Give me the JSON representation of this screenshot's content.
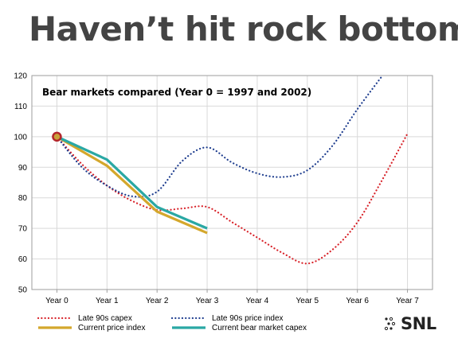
{
  "headline": "Haven’t hit rock bottom",
  "logo_text": "SNL",
  "colors": {
    "late90s_capex": "#d8232a",
    "late90s_price": "#1f3e8f",
    "current_price": "#d4a72c",
    "current_capex": "#2aa8a4",
    "marker_fill": "#c9a23a",
    "marker_stroke": "#b3262b",
    "grid": "#d9d9d9"
  },
  "chart_data": {
    "type": "line",
    "title": "Bear markets compared (Year 0 = 1997 and 2002)",
    "xlabel": "",
    "ylabel": "",
    "categories": [
      "Year 0",
      "Year 1",
      "Year 2",
      "Year 3",
      "Year 4",
      "Year 5",
      "Year 6",
      "Year 7"
    ],
    "ylim": [
      50,
      120
    ],
    "yticks": [
      50,
      60,
      70,
      80,
      90,
      100,
      110,
      120
    ],
    "grid": true,
    "legend_position": "bottom",
    "series": [
      {
        "name": "Late 90s capex",
        "style": "dotted",
        "color_key": "late90s_capex",
        "points": [
          [
            0,
            100
          ],
          [
            0.5,
            91
          ],
          [
            1,
            84
          ],
          [
            1.5,
            79
          ],
          [
            2,
            76
          ],
          [
            2.5,
            76.5
          ],
          [
            3,
            77
          ],
          [
            3.5,
            72
          ],
          [
            4,
            67
          ],
          [
            4.5,
            62
          ],
          [
            5,
            58.5
          ],
          [
            5.5,
            63
          ],
          [
            6,
            72
          ],
          [
            6.5,
            86
          ],
          [
            7,
            101
          ]
        ]
      },
      {
        "name": "Late 90s price index",
        "style": "dotted",
        "color_key": "late90s_price",
        "points": [
          [
            0,
            100
          ],
          [
            0.5,
            90
          ],
          [
            1,
            84
          ],
          [
            1.5,
            80.5
          ],
          [
            2,
            82
          ],
          [
            2.5,
            92
          ],
          [
            3,
            96.5
          ],
          [
            3.5,
            91.5
          ],
          [
            4,
            88
          ],
          [
            4.5,
            86.8
          ],
          [
            5,
            89
          ],
          [
            5.5,
            97
          ],
          [
            6,
            109
          ],
          [
            6.5,
            120
          ]
        ]
      },
      {
        "name": "Current price index",
        "style": "solid",
        "color_key": "current_price",
        "points": [
          [
            0,
            100
          ],
          [
            1,
            90.5
          ],
          [
            2,
            75.5
          ],
          [
            3,
            68.5
          ]
        ]
      },
      {
        "name": "Current bear market capex",
        "style": "solid",
        "color_key": "current_capex",
        "points": [
          [
            0,
            100
          ],
          [
            1,
            92.5
          ],
          [
            2,
            77
          ],
          [
            3,
            70
          ]
        ]
      }
    ]
  }
}
